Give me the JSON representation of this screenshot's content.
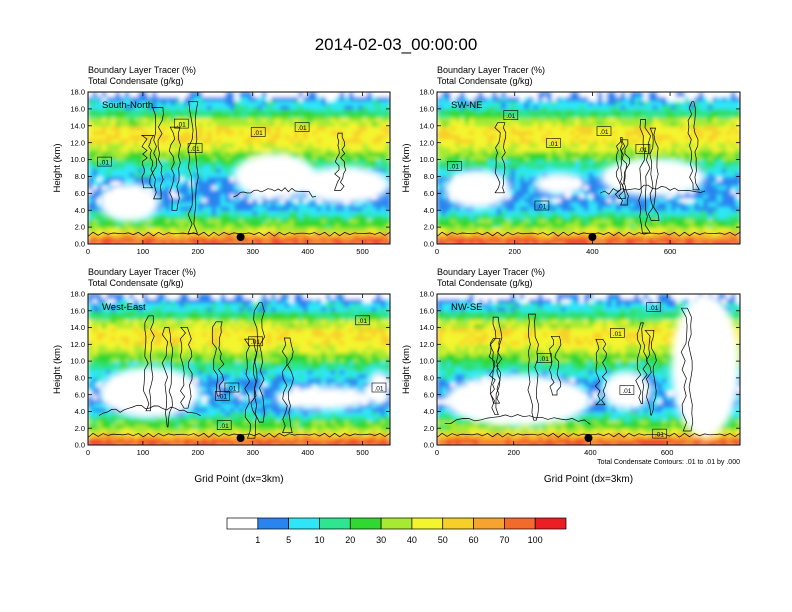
{
  "figure": {
    "title": "2014-02-03_00:00:00",
    "footnote": "Total Condensate Contours: .01 to .01 by .000"
  },
  "colors": {
    "levels": [
      "#ffffff",
      "#2a84f0",
      "#2ee6f7",
      "#2fe58f",
      "#30d830",
      "#a6ea32",
      "#f4f52e",
      "#f7cf29",
      "#f6a330",
      "#f26a2c",
      "#eb1e24"
    ],
    "contour": "#000000",
    "frame": "#000000"
  },
  "chart_data": [
    {
      "type": "heatmap",
      "panel": "South-North",
      "title_line1": "Boundary Layer Tracer   (%)",
      "title_line2": "Total Condensate   (g/kg)",
      "xlabel": "",
      "ylabel": "Height (km)",
      "xlim": [
        0,
        550
      ],
      "ylim": [
        0,
        18
      ],
      "xticks": [
        "0",
        "100",
        "200",
        "300",
        "400",
        "500"
      ],
      "xtick_values": [
        0,
        100,
        200,
        300,
        400,
        500
      ],
      "yticks": [
        "0.0",
        "2.0",
        "4.0",
        "6.0",
        "8.0",
        "10.0",
        "12.0",
        "14.0",
        "16.0",
        "18.0"
      ],
      "contour_labels": [
        {
          "text": ".01",
          "x": 30,
          "y": 9.7
        },
        {
          "text": ".01",
          "x": 170,
          "y": 14.2
        },
        {
          "text": ".01",
          "x": 195,
          "y": 11.3
        },
        {
          "text": ".01",
          "x": 310,
          "y": 13.2
        },
        {
          "text": ".01",
          "x": 390,
          "y": 13.8
        }
      ],
      "marker_x": 278,
      "clear_regions": [
        {
          "x0": 265,
          "x1": 415,
          "y0": 5.3,
          "y1": 10.8
        },
        {
          "x0": 385,
          "x1": 550,
          "y0": 4.8,
          "y1": 9.2
        },
        {
          "x0": 20,
          "x1": 130,
          "y0": 2.6,
          "y1": 7.2
        }
      ]
    },
    {
      "type": "heatmap",
      "panel": "SW-NE",
      "title_line1": "Boundary Layer Tracer   (%)",
      "title_line2": "Total Condensate   (g/kg)",
      "xlabel": "",
      "ylabel": "Height (km)",
      "xlim": [
        0,
        780
      ],
      "ylim": [
        0,
        18
      ],
      "xticks": [
        "0",
        "200",
        "400",
        "600"
      ],
      "xtick_values": [
        0,
        200,
        400,
        600
      ],
      "yticks": [
        "0.0",
        "2.0",
        "4.0",
        "6.0",
        "8.0",
        "10.0",
        "12.0",
        "14.0",
        "16.0",
        "18.0"
      ],
      "contour_labels": [
        {
          "text": ".01",
          "x": 45,
          "y": 9.2
        },
        {
          "text": ".01",
          "x": 190,
          "y": 15.2
        },
        {
          "text": ".01",
          "x": 300,
          "y": 11.9
        },
        {
          "text": ".01",
          "x": 430,
          "y": 13.3
        },
        {
          "text": ".01",
          "x": 530,
          "y": 11.2
        },
        {
          "text": ".01",
          "x": 270,
          "y": 4.5
        }
      ],
      "marker_x": 400,
      "clear_regions": [
        {
          "x0": 420,
          "x1": 690,
          "y0": 5.6,
          "y1": 10.2
        },
        {
          "x0": 20,
          "x1": 190,
          "y0": 4.2,
          "y1": 8.8
        },
        {
          "x0": 250,
          "x1": 380,
          "y0": 5.8,
          "y1": 8.4
        }
      ]
    },
    {
      "type": "heatmap",
      "panel": "West-East",
      "title_line1": "Boundary Layer Tracer   (%)",
      "title_line2": "Total Condensate   (g/kg)",
      "xlabel": "Grid Point (dx=3km)",
      "ylabel": "Height (km)",
      "xlim": [
        0,
        550
      ],
      "ylim": [
        0,
        18
      ],
      "xticks": [
        "0",
        "100",
        "200",
        "300",
        "400",
        "500"
      ],
      "xtick_values": [
        0,
        100,
        200,
        300,
        400,
        500
      ],
      "yticks": [
        "0.0",
        "2.0",
        "4.0",
        "6.0",
        "8.0",
        "10.0",
        "12.0",
        "14.0",
        "16.0",
        "18.0"
      ],
      "contour_labels": [
        {
          "text": ".01",
          "x": 245,
          "y": 5.8
        },
        {
          "text": ".01",
          "x": 262,
          "y": 6.8
        },
        {
          "text": ".01",
          "x": 305,
          "y": 12.3
        },
        {
          "text": ".01",
          "x": 500,
          "y": 14.8
        },
        {
          "text": ".01",
          "x": 248,
          "y": 2.3
        },
        {
          "text": ".01",
          "x": 530,
          "y": 6.8
        }
      ],
      "marker_x": 278,
      "clear_regions": [
        {
          "x0": 20,
          "x1": 205,
          "y0": 3.2,
          "y1": 9.3
        },
        {
          "x0": 340,
          "x1": 520,
          "y0": 4.2,
          "y1": 7.0
        },
        {
          "x0": 510,
          "x1": 550,
          "y0": 4.8,
          "y1": 8.8
        }
      ]
    },
    {
      "type": "heatmap",
      "panel": "NW-SE",
      "title_line1": "Boundary Layer Tracer   (%)",
      "title_line2": "Total Condensate   (g/kg)",
      "xlabel": "Grid Point (dx=3km)",
      "ylabel": "Height (km)",
      "xlim": [
        0,
        790
      ],
      "ylim": [
        0,
        18
      ],
      "xticks": [
        "0",
        "200",
        "400",
        "600"
      ],
      "xtick_values": [
        0,
        200,
        400,
        600
      ],
      "yticks": [
        "0.0",
        "2.0",
        "4.0",
        "6.0",
        "8.0",
        "10.0",
        "12.0",
        "14.0",
        "16.0",
        "18.0"
      ],
      "contour_labels": [
        {
          "text": ".01",
          "x": 280,
          "y": 10.3
        },
        {
          "text": ".01",
          "x": 470,
          "y": 13.3
        },
        {
          "text": ".01",
          "x": 495,
          "y": 6.5
        },
        {
          "text": ".01",
          "x": 565,
          "y": 16.4
        },
        {
          "text": ".01",
          "x": 580,
          "y": 1.3
        }
      ],
      "marker_x": 395,
      "clear_regions": [
        {
          "x0": 20,
          "x1": 400,
          "y0": 2.2,
          "y1": 8.4
        },
        {
          "x0": 610,
          "x1": 790,
          "y0": 0.8,
          "y1": 18.0
        },
        {
          "x0": 430,
          "x1": 560,
          "y0": 4.2,
          "y1": 8.8
        }
      ]
    }
  ],
  "colorbar": {
    "labels": [
      "1",
      "5",
      "10",
      "20",
      "30",
      "40",
      "50",
      "60",
      "70",
      "100"
    ]
  }
}
